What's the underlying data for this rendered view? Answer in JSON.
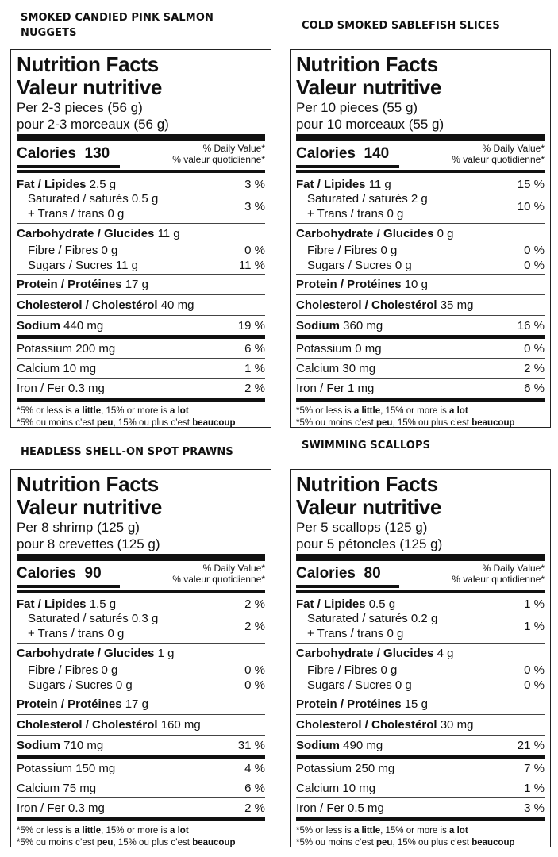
{
  "header": {
    "nf_en": "Nutrition Facts",
    "nf_fr": "Valeur nutritive",
    "dv_en": "% Daily Value*",
    "dv_fr": "% valeur quotidienne*",
    "fat": "Fat / Lipides",
    "sat": "Saturated / saturés",
    "trans": "+ Trans / trans",
    "carb": "Carbohydrate / Glucides",
    "fibre": "Fibre / Fibres",
    "sugars": "Sugars / Sucres",
    "protein": "Protein / Protéines",
    "chol": "Cholesterol / Cholestérol",
    "sodium": "Sodium",
    "potassium": "Potassium",
    "calcium": "Calcium",
    "iron": "Iron / Fer",
    "calories": "Calories",
    "foot_en_1": "*5% or less is ",
    "foot_en_2": "a little",
    "foot_en_3": ", 15% or more is ",
    "foot_en_4": "a lot",
    "foot_fr_1": "*5% ou moins c’est ",
    "foot_fr_2": "peu",
    "foot_fr_3": ", 15% ou plus c’est ",
    "foot_fr_4": "beaucoup"
  },
  "products": [
    {
      "title": "SMOKED CANDIED PINK SALMON NUGGETS",
      "serving_en": "Per 2-3 pieces (56 g)",
      "serving_fr": "pour 2-3 morceaux (56 g)",
      "calories": "130",
      "fat": "2.5 g",
      "fat_dv": "3 %",
      "sat": "0.5 g",
      "trans": "0 g",
      "sat_dv": "3 %",
      "carb": "11 g",
      "fibre": "0 g",
      "fibre_dv": "0 %",
      "sugars": "11 g",
      "sugars_dv": "11 %",
      "protein": "17 g",
      "chol": "40 mg",
      "sodium": "440 mg",
      "sodium_dv": "19 %",
      "potassium": "200 mg",
      "potassium_dv": "6 %",
      "calcium": "10 mg",
      "calcium_dv": "1 %",
      "iron": "0.3 mg",
      "iron_dv": "2 %"
    },
    {
      "title": "COLD SMOKED SABLEFISH SLICES",
      "serving_en": "Per 10 pieces (55 g)",
      "serving_fr": "pour 10 morceaux (55 g)",
      "calories": "140",
      "fat": "11 g",
      "fat_dv": "15 %",
      "sat": "2 g",
      "trans": "0 g",
      "sat_dv": "10 %",
      "carb": "0 g",
      "fibre": "0 g",
      "fibre_dv": "0 %",
      "sugars": "0 g",
      "sugars_dv": "0 %",
      "protein": "10 g",
      "chol": "35 mg",
      "sodium": "360 mg",
      "sodium_dv": "16 %",
      "potassium": "0 mg",
      "potassium_dv": "0 %",
      "calcium": "30 mg",
      "calcium_dv": "2 %",
      "iron": "1 mg",
      "iron_dv": "6 %"
    },
    {
      "title": "HEADLESS SHELL-ON SPOT PRAWNS",
      "serving_en": "Per 8 shrimp (125 g)",
      "serving_fr": "pour 8 crevettes (125 g)",
      "calories": "90",
      "fat": "1.5 g",
      "fat_dv": "2 %",
      "sat": "0.3 g",
      "trans": "0 g",
      "sat_dv": "2 %",
      "carb": "1 g",
      "fibre": "0 g",
      "fibre_dv": "0 %",
      "sugars": "0 g",
      "sugars_dv": "0 %",
      "protein": "17 g",
      "chol": "160 mg",
      "sodium": "710 mg",
      "sodium_dv": "31 %",
      "potassium": "150 mg",
      "potassium_dv": "4 %",
      "calcium": "75 mg",
      "calcium_dv": "6 %",
      "iron": "0.3 mg",
      "iron_dv": "2 %"
    },
    {
      "title": "SWIMMING SCALLOPS",
      "serving_en": "Per 5 scallops (125 g)",
      "serving_fr": "pour 5 pétoncles (125 g)",
      "calories": "80",
      "fat": "0.5 g",
      "fat_dv": "1 %",
      "sat": "0.2 g",
      "trans": "0 g",
      "sat_dv": "1 %",
      "carb": "4 g",
      "fibre": "0 g",
      "fibre_dv": "0 %",
      "sugars": "0 g",
      "sugars_dv": "0 %",
      "protein": "15 g",
      "chol": "30 mg",
      "sodium": "490 mg",
      "sodium_dv": "21 %",
      "potassium": "250 mg",
      "potassium_dv": "7 %",
      "calcium": "10 mg",
      "calcium_dv": "1 %",
      "iron": "0.5 mg",
      "iron_dv": "3 %"
    }
  ]
}
